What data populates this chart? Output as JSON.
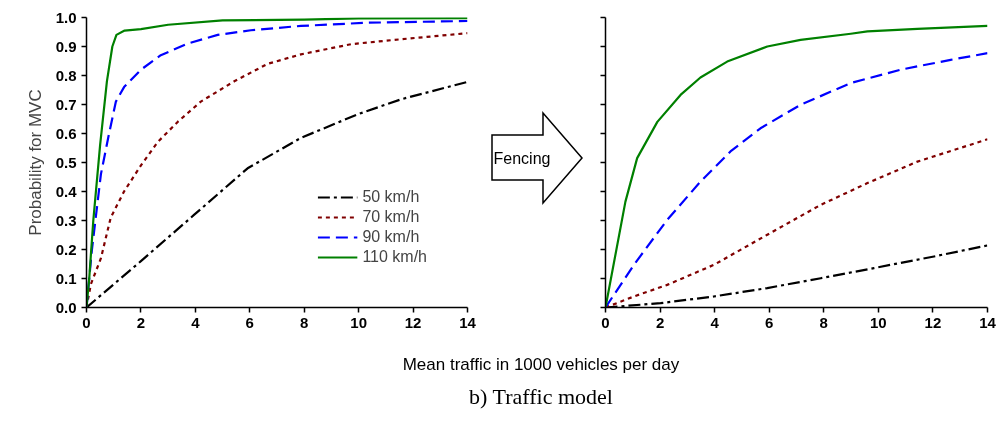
{
  "chart_data": [
    {
      "type": "line",
      "ylabel": "Probability for MVC",
      "xlabel": "Mean traffic in 1000 vehicles per day",
      "annotations": [
        "b)  Traffic model"
      ],
      "legend": "bottom right",
      "grid": false,
      "xlim": [
        0,
        14
      ],
      "xticks": [
        0,
        2,
        4,
        6,
        8,
        10,
        12,
        14
      ],
      "ylim": [
        0,
        1
      ],
      "yticks": [
        {
          "value": 0,
          "label": "0.0"
        },
        {
          "value": 0.1,
          "label": "0.1"
        },
        {
          "value": 0.2,
          "label": "0.2"
        },
        {
          "value": 0.3,
          "label": "0.3"
        },
        {
          "value": 0.4,
          "label": "0.4"
        },
        {
          "value": 0.5,
          "label": "0.5"
        },
        {
          "value": 0.6,
          "label": "0.6"
        },
        {
          "value": 0.7,
          "label": "0.7"
        },
        {
          "value": 0.8,
          "label": "0.8"
        },
        {
          "value": 0.9,
          "label": "0.9"
        },
        {
          "value": 1,
          "label": "1.0"
        }
      ],
      "series": [
        {
          "name": "50 km/h",
          "color": "#000000",
          "line_style": "dashdot",
          "x": [
            0,
            2,
            3.96,
            5.92,
            7.88,
            9.96,
            11.56,
            14
          ],
          "values": [
            0,
            0.16,
            0.32,
            0.48,
            0.585,
            0.666,
            0.718,
            0.778
          ]
        },
        {
          "name": "70 km/h",
          "color": "#800000",
          "line_style": "dotted",
          "x": [
            0,
            0.16,
            0.53,
            0.89,
            1.38,
            2.0,
            2.61,
            3.35,
            4.2,
            5.43,
            6.65,
            7.88,
            9.72,
            11.56,
            14
          ],
          "values": [
            0,
            0.08,
            0.17,
            0.31,
            0.4,
            0.49,
            0.57,
            0.64,
            0.71,
            0.78,
            0.84,
            0.873,
            0.908,
            0.925,
            0.946
          ]
        },
        {
          "name": "90 km/h",
          "color": "#0000ff",
          "line_style": "dashed",
          "x": [
            0,
            0.2,
            0.53,
            0.83,
            1.08,
            1.38,
            2.0,
            2.73,
            3.71,
            4.82,
            6.04,
            7.88,
            10.33,
            14
          ],
          "values": [
            0,
            0.2,
            0.46,
            0.6,
            0.71,
            0.76,
            0.82,
            0.87,
            0.91,
            0.94,
            0.956,
            0.971,
            0.982,
            0.988
          ]
        },
        {
          "name": "110 km/h",
          "color": "#008000",
          "line_style": "solid",
          "x": [
            0,
            0.1,
            0.25,
            0.5,
            0.75,
            0.95,
            1.1,
            1.4,
            2,
            3,
            5,
            8,
            10,
            14
          ],
          "values": [
            0,
            0.1,
            0.3,
            0.56,
            0.78,
            0.9,
            0.94,
            0.955,
            0.96,
            0.975,
            0.99,
            0.993,
            0.997,
            0.998
          ]
        }
      ]
    },
    {
      "type": "line",
      "annotations": [
        "Fencing"
      ],
      "tick_labels": "x",
      "grid": false,
      "xlim": [
        0,
        14
      ],
      "xticks": [
        0,
        2,
        4,
        6,
        8,
        10,
        12,
        14
      ],
      "ylim": [
        0,
        1
      ],
      "yticks": [
        {
          "value": 0,
          "label": null
        },
        {
          "value": 0.1,
          "label": null
        },
        {
          "value": 0.2,
          "label": null
        },
        {
          "value": 0.3,
          "label": null
        },
        {
          "value": 0.4,
          "label": null
        },
        {
          "value": 0.5,
          "label": null
        },
        {
          "value": 0.6,
          "label": null
        },
        {
          "value": 0.7,
          "label": null
        },
        {
          "value": 0.8,
          "label": null
        },
        {
          "value": 0.9,
          "label": null
        },
        {
          "value": 1,
          "label": null
        }
      ],
      "series": [
        {
          "color": "#000000",
          "line_style": "dashdot",
          "x": [
            0,
            2.02,
            3.97,
            5.93,
            7.89,
            9.84,
            12.04,
            14
          ],
          "values": [
            0,
            0.015,
            0.038,
            0.067,
            0.101,
            0.136,
            0.176,
            0.214
          ]
        },
        {
          "color": "#800000",
          "line_style": "dotted",
          "x": [
            0,
            1.04,
            2.26,
            3.97,
            5.93,
            7.89,
            9.6,
            11.43,
            14
          ],
          "values": [
            0,
            0.038,
            0.078,
            0.147,
            0.251,
            0.354,
            0.429,
            0.503,
            0.58
          ]
        },
        {
          "color": "#0000ff",
          "line_style": "dashed",
          "x": [
            0,
            1.04,
            2.26,
            3.48,
            4.58,
            5.68,
            7.15,
            8.99,
            10.82,
            12.65,
            14
          ],
          "values": [
            0,
            0.147,
            0.302,
            0.434,
            0.538,
            0.618,
            0.699,
            0.774,
            0.82,
            0.854,
            0.877
          ]
        },
        {
          "color": "#008000",
          "line_style": "solid",
          "x": [
            0,
            0.73,
            1.16,
            1.9,
            2.75,
            3.48,
            4.46,
            5.93,
            7.15,
            8.99,
            9.6,
            11.43,
            14
          ],
          "values": [
            0,
            0.365,
            0.515,
            0.64,
            0.733,
            0.793,
            0.848,
            0.9,
            0.923,
            0.944,
            0.952,
            0.961,
            0.971
          ]
        }
      ]
    }
  ]
}
